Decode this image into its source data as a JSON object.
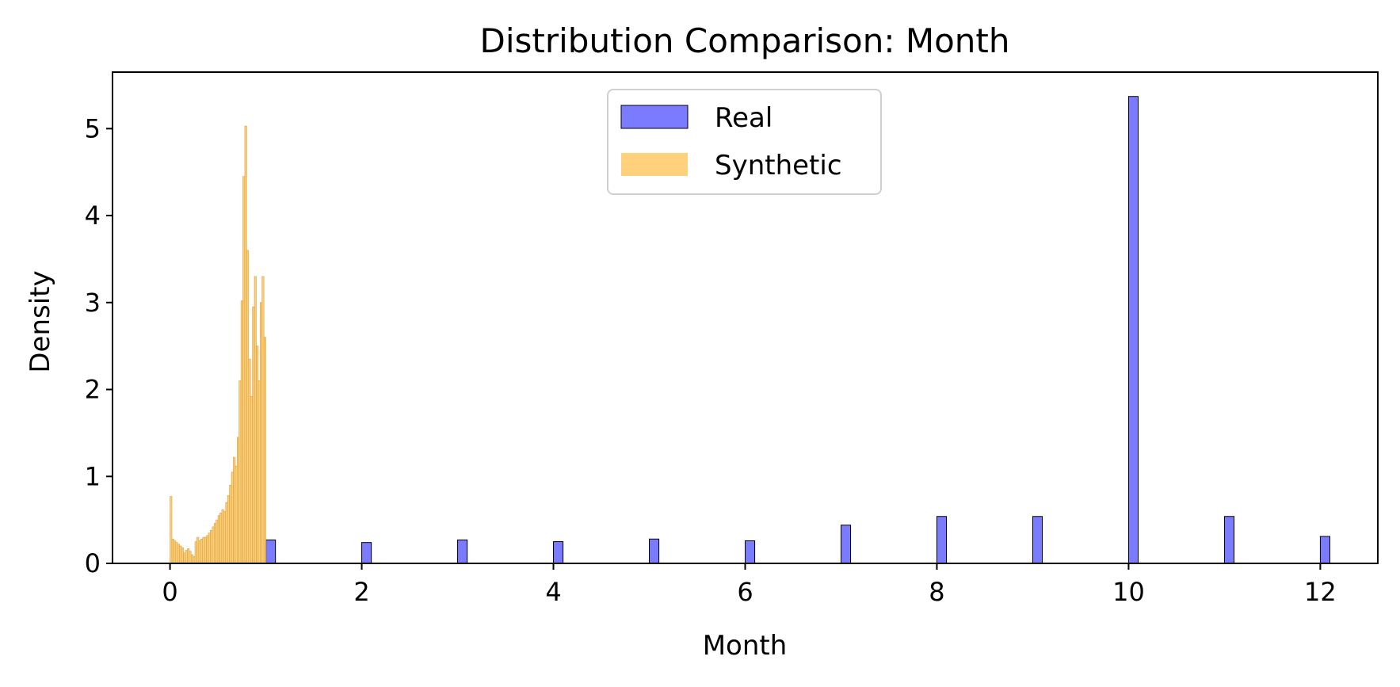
{
  "chart_data": {
    "type": "bar",
    "title": "Distribution Comparison: Month",
    "xlabel": "Month",
    "ylabel": "Density",
    "xlim": [
      -0.6,
      12.6
    ],
    "ylim": [
      0,
      5.65
    ],
    "xticks": [
      0,
      2,
      4,
      6,
      8,
      10,
      12
    ],
    "yticks": [
      0,
      1,
      2,
      3,
      4,
      5
    ],
    "grid": false,
    "legend_position": "top-center",
    "series": [
      {
        "name": "Real",
        "color": "#7b7bff",
        "bin_width": 0.1,
        "x": [
          1,
          2,
          3,
          4,
          5,
          6,
          7,
          8,
          9,
          10,
          11,
          12
        ],
        "values": [
          0.27,
          0.24,
          0.27,
          0.25,
          0.28,
          0.26,
          0.44,
          0.54,
          0.54,
          5.37,
          0.54,
          0.31
        ]
      },
      {
        "name": "Synthetic",
        "color": "#ffc55c",
        "bin_width": 0.02,
        "x": [
          0.01,
          0.03,
          0.05,
          0.07,
          0.09,
          0.11,
          0.13,
          0.15,
          0.17,
          0.19,
          0.21,
          0.23,
          0.25,
          0.27,
          0.29,
          0.31,
          0.33,
          0.35,
          0.37,
          0.39,
          0.41,
          0.43,
          0.45,
          0.47,
          0.49,
          0.51,
          0.53,
          0.55,
          0.57,
          0.59,
          0.61,
          0.63,
          0.65,
          0.67,
          0.69,
          0.71,
          0.73,
          0.75,
          0.77,
          0.79,
          0.81,
          0.83,
          0.85,
          0.87,
          0.89,
          0.91,
          0.93,
          0.95,
          0.97,
          0.99
        ],
        "values": [
          0.77,
          0.28,
          0.26,
          0.24,
          0.22,
          0.2,
          0.18,
          0.12,
          0.15,
          0.17,
          0.14,
          0.1,
          0.08,
          0.25,
          0.3,
          0.26,
          0.28,
          0.3,
          0.3,
          0.32,
          0.35,
          0.38,
          0.42,
          0.46,
          0.5,
          0.55,
          0.58,
          0.62,
          0.6,
          0.7,
          0.78,
          0.9,
          1.05,
          1.22,
          1.12,
          1.45,
          2.1,
          3.02,
          4.45,
          5.03,
          3.6,
          2.35,
          1.92,
          2.95,
          3.3,
          2.5,
          2.1,
          3.0,
          3.3,
          2.6
        ]
      }
    ]
  }
}
